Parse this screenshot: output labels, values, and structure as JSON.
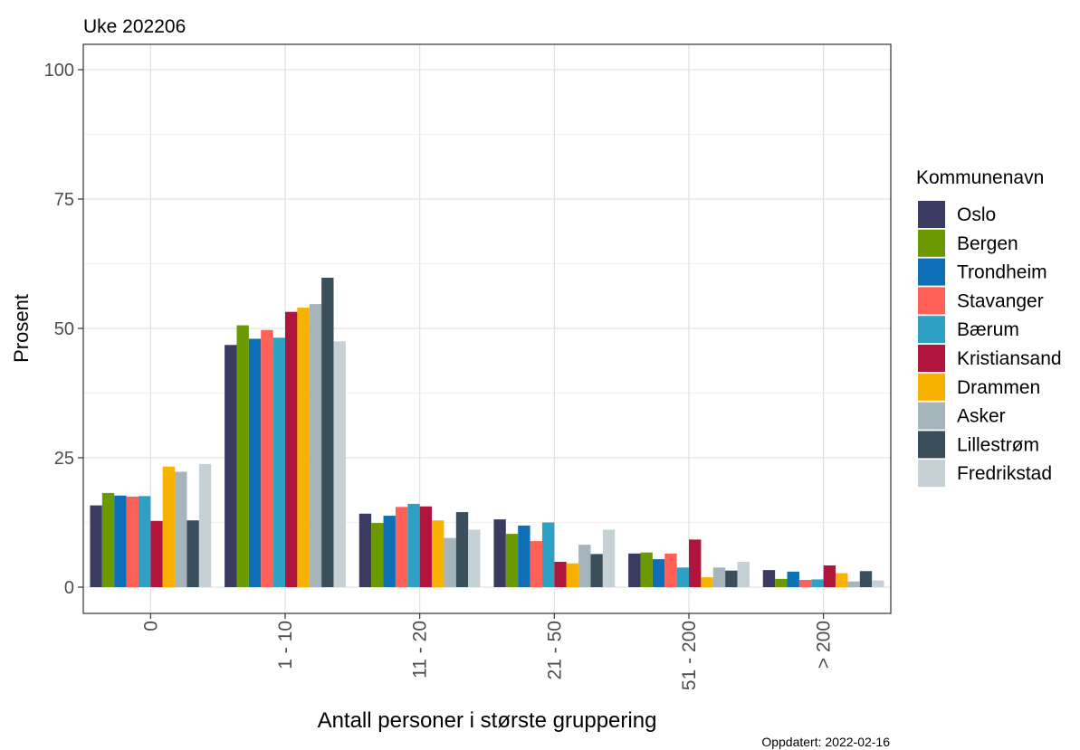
{
  "chart_data": {
    "type": "bar",
    "title": "Uke 202206",
    "xlabel": "Antall personer i største gruppering",
    "ylabel": "Prosent",
    "caption": "Oppdatert: 2022-02-16",
    "categories": [
      "0",
      "1 - 10",
      "11 - 20",
      "21 - 50",
      "51 - 200",
      "> 200"
    ],
    "ylim": [
      -5,
      105
    ],
    "yticks": [
      0,
      25,
      50,
      75,
      100
    ],
    "grid": true,
    "legend": {
      "title": "Kommunenavn",
      "position": "right"
    },
    "series": [
      {
        "name": "Oslo",
        "color": "#3b3b62",
        "values": [
          15.8,
          46.8,
          14.2,
          13.1,
          6.5,
          3.3
        ]
      },
      {
        "name": "Bergen",
        "color": "#6b9a00",
        "values": [
          18.2,
          50.6,
          12.4,
          10.3,
          6.7,
          1.6
        ]
      },
      {
        "name": "Trondheim",
        "color": "#0f6fb6",
        "values": [
          17.7,
          48.0,
          13.8,
          11.9,
          5.4,
          3.0
        ]
      },
      {
        "name": "Stavanger",
        "color": "#ff6157",
        "values": [
          17.5,
          49.7,
          15.5,
          8.9,
          6.5,
          1.4
        ]
      },
      {
        "name": "Bærum",
        "color": "#2ea0c4",
        "values": [
          17.6,
          48.2,
          16.1,
          12.5,
          3.8,
          1.5
        ]
      },
      {
        "name": "Kristiansand",
        "color": "#b0163d",
        "values": [
          12.8,
          53.2,
          15.6,
          4.9,
          9.2,
          4.2
        ]
      },
      {
        "name": "Drammen",
        "color": "#f7b200",
        "values": [
          23.3,
          54.0,
          12.9,
          4.6,
          1.9,
          2.7
        ]
      },
      {
        "name": "Asker",
        "color": "#a6b4bc",
        "values": [
          22.3,
          54.7,
          9.5,
          8.2,
          3.8,
          1.1
        ]
      },
      {
        "name": "Lillestrøm",
        "color": "#3a4f5c",
        "values": [
          12.9,
          59.8,
          14.5,
          6.4,
          3.2,
          3.1
        ]
      },
      {
        "name": "Fredrikstad",
        "color": "#c6d1d6",
        "values": [
          23.8,
          47.5,
          11.1,
          11.1,
          4.9,
          1.3
        ]
      }
    ]
  }
}
